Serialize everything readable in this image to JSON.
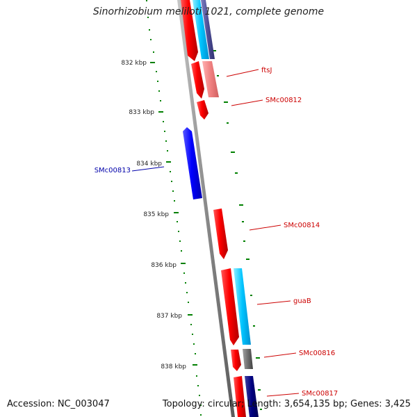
{
  "title": "Sinorhizobium meliloti 1021, complete genome",
  "accession_text": "Accession: NC_003047",
  "summary_text": "Topology: circular; Length: 3,654,135 bp; Genes: 3,425",
  "ticks": [
    {
      "label": "832 kbp",
      "kbp": 832
    },
    {
      "label": "833 kbp",
      "kbp": 833
    },
    {
      "label": "834 kbp",
      "kbp": 834
    },
    {
      "label": "835 kbp",
      "kbp": 835
    },
    {
      "label": "836 kbp",
      "kbp": 836
    },
    {
      "label": "837 kbp",
      "kbp": 837
    },
    {
      "label": "838 kbp",
      "kbp": 838
    }
  ],
  "gene_labels": [
    {
      "name": "ftsJ",
      "strand": "forward"
    },
    {
      "name": "SMc00812",
      "strand": "forward"
    },
    {
      "name": "SMc00813",
      "strand": "reverse"
    },
    {
      "name": "SMc00814",
      "strand": "forward"
    },
    {
      "name": "guaB",
      "strand": "forward"
    },
    {
      "name": "SMc00816",
      "strand": "forward"
    },
    {
      "name": "SMc00817",
      "strand": "forward"
    }
  ],
  "colors": {
    "forward_cds": "#ff0000",
    "reverse_cds": "#0000ff",
    "forward_label": "#cc0000",
    "reverse_label": "#0000aa",
    "backbone": "#808080",
    "tick_marks": "#008000",
    "cyan_feature": "#00ccff",
    "navy_feature": "#000080",
    "pink_feature": "#f08080",
    "grey_feature": "#666666"
  }
}
